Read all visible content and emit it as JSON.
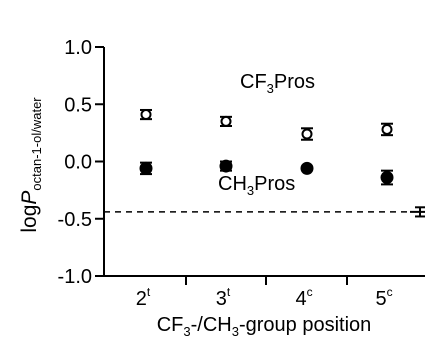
{
  "chart_data": {
    "type": "scatter",
    "categories": [
      {
        "main": "2",
        "sup": "t"
      },
      {
        "main": "3",
        "sup": "t"
      },
      {
        "main": "4",
        "sup": "c"
      },
      {
        "main": "5",
        "sup": "c"
      }
    ],
    "x": [
      1,
      2,
      3,
      4
    ],
    "ylim": [
      -1.0,
      1.0
    ],
    "yticks": [
      "1.0",
      "0.5",
      "0.0",
      "-0.5",
      "-1.0"
    ],
    "ytick_values": [
      1.0,
      0.5,
      0.0,
      -0.5,
      -1.0
    ],
    "ylabel": {
      "main": "log",
      "italic": "P",
      "sub": "octan-1-ol/water"
    },
    "xlabel": {
      "p1": "CF",
      "s1": "3",
      "p2": "-/CH",
      "s2": "3",
      "p3": "-group position"
    },
    "series": [
      {
        "label": {
          "p1": "CF",
          "s1": "3",
          "p2": "Pros"
        },
        "marker": "open-circle",
        "values": [
          0.41,
          0.35,
          0.24,
          0.28
        ],
        "errors": [
          0.04,
          0.04,
          0.05,
          0.05
        ]
      },
      {
        "label": {
          "p1": "CH",
          "s1": "3",
          "p2": "Pros"
        },
        "marker": "filled-circle",
        "values": [
          -0.06,
          -0.04,
          -0.06,
          -0.14
        ],
        "errors": [
          0.05,
          0.04,
          0.0,
          0.06
        ]
      }
    ],
    "reference": {
      "value": -0.44,
      "style": "dashed",
      "error": 0.04
    },
    "grid": false,
    "colors": {
      "axis": "#000000",
      "marker": "#000000"
    }
  }
}
